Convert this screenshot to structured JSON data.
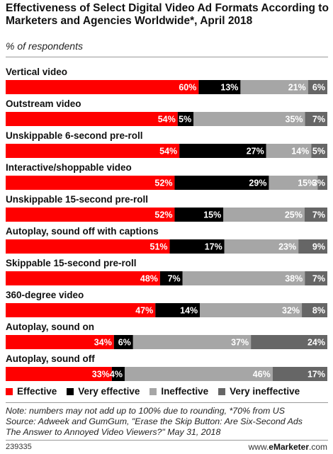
{
  "header": {
    "title": "Effectiveness of Select Digital Video Ad Formats According to Marketers and Agencies Worldwide*, April 2018",
    "subtitle": "% of respondents"
  },
  "colors": {
    "effective": "#ff0000",
    "very_effective": "#000000",
    "ineffective": "#a6a6a6",
    "very_ineffective": "#666666"
  },
  "chart_data": {
    "type": "bar",
    "orientation": "horizontal",
    "stacked": true,
    "categories": [
      "Vertical video",
      "Outstream video",
      "Unskippable 6-second pre-roll",
      "Interactive/shoppable video",
      "Unskippable 15-second pre-roll",
      "Autoplay, sound off with captions",
      "Skippable 15-second pre-roll",
      "360-degree video",
      "Autoplay, sound on",
      "Autoplay, sound off"
    ],
    "series": [
      {
        "name": "Effective",
        "values": [
          60,
          54,
          54,
          52,
          52,
          51,
          48,
          47,
          34,
          33
        ]
      },
      {
        "name": "Very effective",
        "values": [
          13,
          5,
          27,
          29,
          15,
          17,
          7,
          14,
          6,
          4
        ]
      },
      {
        "name": "Ineffective",
        "values": [
          21,
          35,
          14,
          15,
          25,
          23,
          38,
          32,
          37,
          46
        ]
      },
      {
        "name": "Very ineffective",
        "values": [
          6,
          7,
          5,
          3,
          7,
          9,
          7,
          8,
          24,
          17
        ]
      }
    ],
    "value_suffix": "%",
    "legend_position": "bottom"
  },
  "legend": {
    "effective": "Effective",
    "very_effective": "Very effective",
    "ineffective": "Ineffective",
    "very_ineffective": "Very ineffective"
  },
  "footer": {
    "note_line1": "Note: numbers may not add up to 100% due to rounding, *70% from US",
    "note_line2": "Source: Adweek and GumGum, \"Erase the Skip Button: Are Six-Second Ads",
    "note_line3": "The Answer to Annoyed Video Viewers?\" May 31, 2018",
    "chart_id": "239335",
    "brand_prefix": "www.",
    "brand_name": "eMarketer",
    "brand_suffix": ".com"
  }
}
